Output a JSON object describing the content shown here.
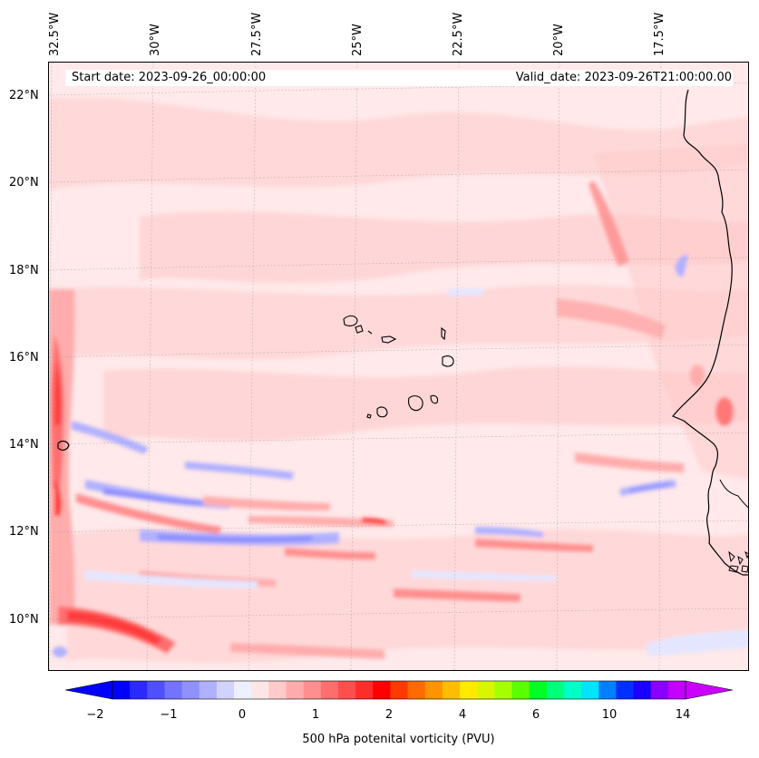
{
  "header": {
    "start_date": "Start date: 2023-09-26_00:00:00",
    "valid_date": "Valid_date: 2023-09-26T21:00:00.00"
  },
  "longitude_labels": [
    "32.5°W",
    "30°W",
    "27.5°W",
    "25°W",
    "22.5°W",
    "20°W",
    "17.5°W"
  ],
  "latitude_labels": [
    "22°N",
    "20°N",
    "18°N",
    "16°N",
    "14°N",
    "12°N",
    "10°N"
  ],
  "colorbar": {
    "label": "500 hPa potenital vorticity (PVU)",
    "ticks": [
      "−2",
      "−1",
      "0",
      "1",
      "2",
      "4",
      "6",
      "10",
      "14"
    ],
    "colors": [
      "#0000ff",
      "#2a2aff",
      "#4f4fff",
      "#7373ff",
      "#9090ff",
      "#b0b0ff",
      "#d2d2ff",
      "#eef0ff",
      "#ffe6e6",
      "#ffcaca",
      "#ffacac",
      "#ff8e8e",
      "#ff6e6e",
      "#ff4e4e",
      "#ff2c2c",
      "#ff0000",
      "#ff3a00",
      "#ff6a00",
      "#ff9400",
      "#ffbd00",
      "#ffea00",
      "#d8f600",
      "#a6ff00",
      "#5aff00",
      "#00ff22",
      "#00ff7a",
      "#00ffc6",
      "#00e4ff",
      "#0080ff",
      "#0030ff",
      "#1a00ff",
      "#8a00ff",
      "#c400ff"
    ],
    "extend_low_color": "#0000ff",
    "extend_high_color": "#cc00ff"
  },
  "map_colors": {
    "background": "#ffe9ea",
    "light_red": "#ffcaca",
    "mid_red": "#ffacac",
    "strong_red": "#ff6e6e",
    "deep_red": "#ff3a3a",
    "light_blue": "#e4e6ff",
    "mid_blue": "#b0b0ff",
    "strong_blue": "#8a8aff",
    "coast": "#000000"
  }
}
